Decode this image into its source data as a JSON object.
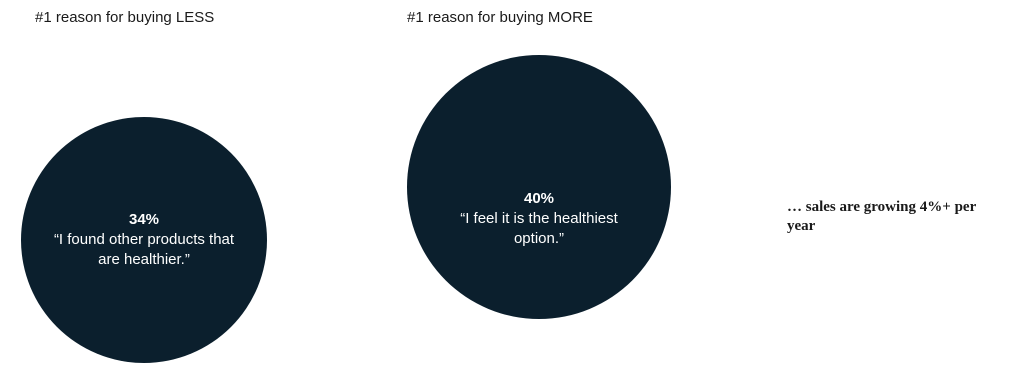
{
  "headings": {
    "less": "#1 reason for buying LESS",
    "more": "#1 reason for buying MORE"
  },
  "bubbles": {
    "less": {
      "percent": "34%",
      "quote": "“I found other products that are healthier.”"
    },
    "more": {
      "percent": "40%",
      "quote": "“I feel it is the healthiest option.”"
    }
  },
  "side_note": "… sales are growing 4%+ per year",
  "colors": {
    "bubble": "#0b1f2d",
    "bubble_text": "#ffffff",
    "text": "#1a1a1a"
  }
}
